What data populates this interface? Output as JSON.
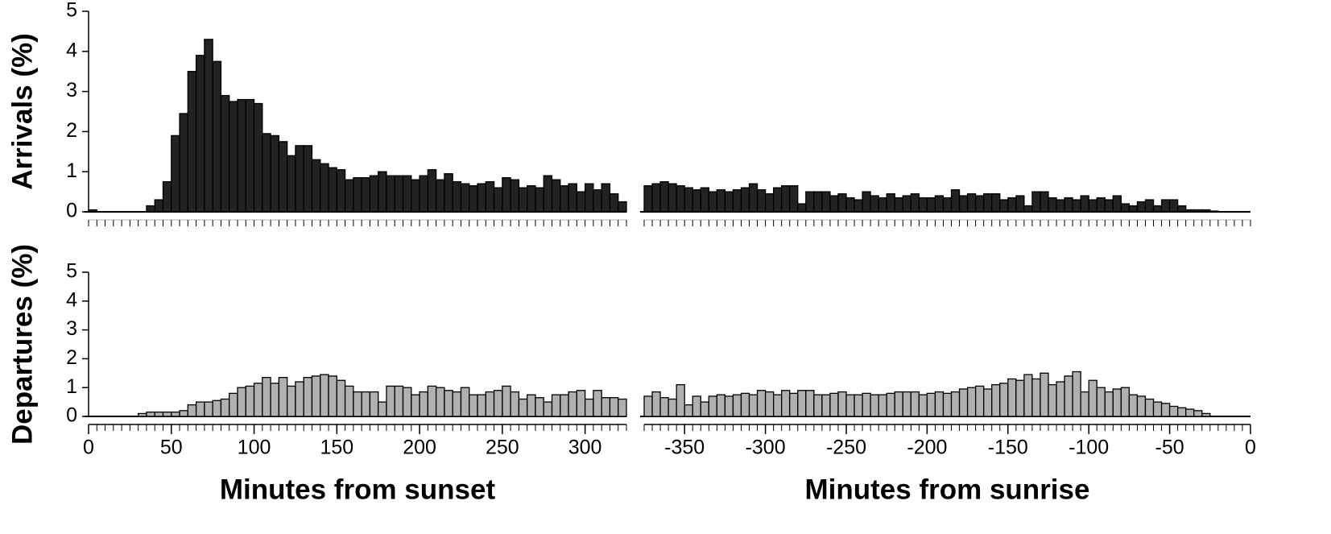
{
  "chart_data": [
    {
      "type": "histogram",
      "ylabel": "Arrivals (%)",
      "color": "#222222",
      "bins": [
        0,
        5,
        10,
        15,
        20,
        25,
        30,
        35,
        40,
        45,
        50,
        55,
        60,
        65,
        70,
        75,
        80,
        85,
        90,
        95,
        100,
        105,
        110,
        115,
        120,
        125,
        130,
        135,
        140,
        145,
        150,
        155,
        160,
        165,
        170,
        175,
        180,
        185,
        190,
        195,
        200,
        205,
        210,
        215,
        220,
        225,
        230,
        235,
        240,
        245,
        250,
        255,
        260,
        265,
        270,
        275,
        280,
        285,
        290,
        295,
        300,
        305,
        310,
        315,
        320,
        325
      ],
      "values": [
        0.05,
        0,
        0,
        0,
        0,
        0,
        0,
        0.15,
        0.3,
        0.75,
        1.9,
        2.45,
        3.5,
        3.9,
        4.3,
        3.75,
        2.9,
        2.75,
        2.8,
        2.8,
        2.7,
        1.95,
        1.9,
        1.75,
        1.4,
        1.65,
        1.65,
        1.3,
        1.2,
        1.1,
        1.05,
        0.8,
        0.85,
        0.85,
        0.9,
        1.0,
        0.9,
        0.9,
        0.9,
        0.8,
        0.9,
        1.05,
        0.8,
        0.95,
        0.75,
        0.7,
        0.65,
        0.7,
        0.75,
        0.6,
        0.85,
        0.8,
        0.6,
        0.65,
        0.6,
        0.9,
        0.8,
        0.65,
        0.7,
        0.5,
        0.7,
        0.55,
        0.7,
        0.45,
        0.25
      ],
      "xlim": [
        0,
        325
      ],
      "ylim": [
        0,
        5
      ],
      "yticks": [
        0,
        1,
        2,
        3,
        4,
        5
      ]
    },
    {
      "type": "histogram",
      "color": "#222222",
      "bins": [
        -375,
        -370,
        -365,
        -360,
        -355,
        -350,
        -345,
        -340,
        -335,
        -330,
        -325,
        -320,
        -315,
        -310,
        -305,
        -300,
        -295,
        -290,
        -285,
        -280,
        -275,
        -270,
        -265,
        -260,
        -255,
        -250,
        -245,
        -240,
        -235,
        -230,
        -225,
        -220,
        -215,
        -210,
        -205,
        -200,
        -195,
        -190,
        -185,
        -180,
        -175,
        -170,
        -165,
        -160,
        -155,
        -150,
        -145,
        -140,
        -135,
        -130,
        -125,
        -120,
        -115,
        -110,
        -105,
        -100,
        -95,
        -90,
        -85,
        -80,
        -75,
        -70,
        -65,
        -60,
        -55,
        -50,
        -45,
        -40,
        -35,
        -30,
        -25,
        -20,
        -15,
        -10,
        -5,
        0
      ],
      "values": [
        0.65,
        0.7,
        0.75,
        0.7,
        0.65,
        0.6,
        0.55,
        0.6,
        0.5,
        0.55,
        0.5,
        0.55,
        0.6,
        0.7,
        0.55,
        0.45,
        0.6,
        0.65,
        0.65,
        0.2,
        0.5,
        0.5,
        0.5,
        0.4,
        0.45,
        0.35,
        0.3,
        0.5,
        0.4,
        0.35,
        0.45,
        0.35,
        0.4,
        0.45,
        0.35,
        0.35,
        0.4,
        0.35,
        0.55,
        0.4,
        0.45,
        0.4,
        0.45,
        0.45,
        0.3,
        0.35,
        0.4,
        0.15,
        0.5,
        0.5,
        0.35,
        0.3,
        0.35,
        0.3,
        0.4,
        0.3,
        0.35,
        0.3,
        0.4,
        0.2,
        0.15,
        0.25,
        0.3,
        0.15,
        0.3,
        0.3,
        0.15,
        0.05,
        0.05,
        0.05,
        0.02,
        0,
        0,
        0,
        0
      ],
      "xlim": [
        -375,
        0
      ],
      "ylim": [
        0,
        5
      ]
    },
    {
      "type": "histogram",
      "ylabel": "Departures (%)",
      "xlabel": "Minutes from sunset",
      "color": "#b0b0b0",
      "bins": [
        0,
        5,
        10,
        15,
        20,
        25,
        30,
        35,
        40,
        45,
        50,
        55,
        60,
        65,
        70,
        75,
        80,
        85,
        90,
        95,
        100,
        105,
        110,
        115,
        120,
        125,
        130,
        135,
        140,
        145,
        150,
        155,
        160,
        165,
        170,
        175,
        180,
        185,
        190,
        195,
        200,
        205,
        210,
        215,
        220,
        225,
        230,
        235,
        240,
        245,
        250,
        255,
        260,
        265,
        270,
        275,
        280,
        285,
        290,
        295,
        300,
        305,
        310,
        315,
        320,
        325
      ],
      "values": [
        0,
        0,
        0,
        0,
        0,
        0,
        0.1,
        0.15,
        0.15,
        0.15,
        0.15,
        0.2,
        0.4,
        0.5,
        0.5,
        0.55,
        0.6,
        0.8,
        1.0,
        1.05,
        1.15,
        1.35,
        1.15,
        1.35,
        1.05,
        1.2,
        1.35,
        1.4,
        1.45,
        1.4,
        1.25,
        1.05,
        0.85,
        0.85,
        0.85,
        0.5,
        1.05,
        1.05,
        1.0,
        0.75,
        0.85,
        1.05,
        1.0,
        0.9,
        0.85,
        1.0,
        0.75,
        0.75,
        0.85,
        0.9,
        1.05,
        0.85,
        0.6,
        0.75,
        0.65,
        0.5,
        0.75,
        0.75,
        0.85,
        0.9,
        0.6,
        0.9,
        0.65,
        0.65,
        0.6
      ],
      "xlim": [
        0,
        325
      ],
      "ylim": [
        0,
        5
      ],
      "yticks": [
        0,
        1,
        2,
        3,
        4,
        5
      ],
      "xticks": [
        0,
        50,
        100,
        150,
        200,
        250,
        300
      ]
    },
    {
      "type": "histogram",
      "xlabel": "Minutes from sunrise",
      "color": "#b0b0b0",
      "bins": [
        -375,
        -370,
        -365,
        -360,
        -355,
        -350,
        -345,
        -340,
        -335,
        -330,
        -325,
        -320,
        -315,
        -310,
        -305,
        -300,
        -295,
        -290,
        -285,
        -280,
        -275,
        -270,
        -265,
        -260,
        -255,
        -250,
        -245,
        -240,
        -235,
        -230,
        -225,
        -220,
        -215,
        -210,
        -205,
        -200,
        -195,
        -190,
        -185,
        -180,
        -175,
        -170,
        -165,
        -160,
        -155,
        -150,
        -145,
        -140,
        -135,
        -130,
        -125,
        -120,
        -115,
        -110,
        -105,
        -100,
        -95,
        -90,
        -85,
        -80,
        -75,
        -70,
        -65,
        -60,
        -55,
        -50,
        -45,
        -40,
        -35,
        -30,
        -25,
        -20,
        -15,
        -10,
        -5,
        0
      ],
      "values": [
        0.7,
        0.85,
        0.65,
        0.6,
        1.1,
        0.4,
        0.7,
        0.5,
        0.7,
        0.75,
        0.7,
        0.75,
        0.8,
        0.75,
        0.9,
        0.85,
        0.75,
        0.9,
        0.8,
        0.9,
        0.9,
        0.75,
        0.75,
        0.8,
        0.85,
        0.75,
        0.75,
        0.8,
        0.75,
        0.75,
        0.8,
        0.85,
        0.85,
        0.85,
        0.75,
        0.8,
        0.85,
        0.8,
        0.85,
        0.95,
        1.0,
        1.05,
        0.95,
        1.1,
        1.15,
        1.3,
        1.25,
        1.45,
        1.3,
        1.5,
        1.1,
        1.2,
        1.4,
        1.55,
        0.85,
        1.25,
        1.0,
        0.85,
        0.95,
        1.0,
        0.75,
        0.7,
        0.6,
        0.5,
        0.45,
        0.35,
        0.3,
        0.25,
        0.2,
        0.1,
        0,
        0,
        0,
        0,
        0
      ],
      "xlim": [
        -375,
        0
      ],
      "ylim": [
        0,
        5
      ],
      "xticks": [
        -350,
        -300,
        -250,
        -200,
        -150,
        -100,
        -50,
        0
      ]
    }
  ]
}
